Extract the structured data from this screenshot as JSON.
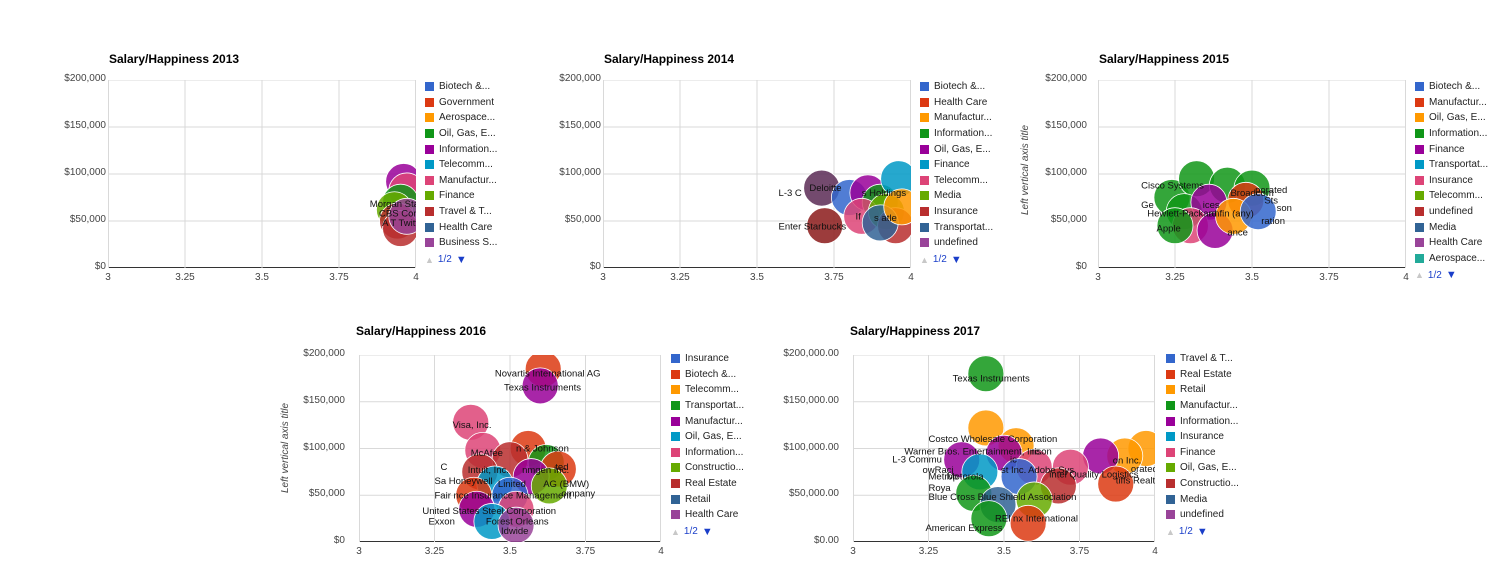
{
  "chart_data": [
    {
      "type": "scatter",
      "variant": "bubble",
      "title": "Salary/Happiness 2013",
      "xlim": [
        3,
        4
      ],
      "ylim": [
        0,
        200000
      ],
      "x_ticks": [
        "3",
        "3.25",
        "3.5",
        "3.75",
        "4"
      ],
      "y_ticks": [
        "$0",
        "$50,000",
        "$100,000",
        "$150,000",
        "$200,000"
      ],
      "ylabel": "",
      "legend": [
        {
          "label": "Biotech &...",
          "color": "#3366cc"
        },
        {
          "label": "Government",
          "color": "#dc3912"
        },
        {
          "label": "Aerospace...",
          "color": "#ff9900"
        },
        {
          "label": "Oil, Gas, E...",
          "color": "#109618"
        },
        {
          "label": "Information...",
          "color": "#990099"
        },
        {
          "label": "Telecomm...",
          "color": "#0099c6"
        },
        {
          "label": "Manufactur...",
          "color": "#dd4477"
        },
        {
          "label": "Finance",
          "color": "#66aa00"
        },
        {
          "label": "Travel & T...",
          "color": "#b82e2e"
        },
        {
          "label": "Health Care",
          "color": "#316395"
        },
        {
          "label": "Business S...",
          "color": "#994499"
        }
      ],
      "pager": "1/2",
      "points": [
        {
          "x": 3.96,
          "y": 92000,
          "color": "#990099"
        },
        {
          "x": 3.97,
          "y": 82000,
          "color": "#dd4477"
        },
        {
          "x": 3.95,
          "y": 70000,
          "color": "#109618"
        },
        {
          "x": 3.93,
          "y": 62000,
          "color": "#66aa00"
        },
        {
          "x": 3.94,
          "y": 50000,
          "color": "#b82e2e"
        },
        {
          "x": 3.95,
          "y": 42000,
          "color": "#b82e2e"
        },
        {
          "x": 3.97,
          "y": 55000,
          "color": "#994499"
        }
      ],
      "labels": [
        {
          "text": "Morgan Sta",
          "x": 3.85,
          "y": 68000
        },
        {
          "text": "CBS Corpo",
          "x": 3.88,
          "y": 58000
        },
        {
          "text": "A T Twitter",
          "x": 3.89,
          "y": 48000
        }
      ]
    },
    {
      "type": "scatter",
      "variant": "bubble",
      "title": "Salary/Happiness 2014",
      "xlim": [
        3,
        4
      ],
      "ylim": [
        0,
        200000
      ],
      "x_ticks": [
        "3",
        "3.25",
        "3.5",
        "3.75",
        "4"
      ],
      "y_ticks": [
        "$0",
        "$50,000",
        "$100,000",
        "$150,000",
        "$200,000"
      ],
      "ylabel": "",
      "legend": [
        {
          "label": "Biotech &...",
          "color": "#3366cc"
        },
        {
          "label": "Health Care",
          "color": "#dc3912"
        },
        {
          "label": "Manufactur...",
          "color": "#ff9900"
        },
        {
          "label": "Information...",
          "color": "#109618"
        },
        {
          "label": "Oil, Gas, E...",
          "color": "#990099"
        },
        {
          "label": "Finance",
          "color": "#0099c6"
        },
        {
          "label": "Telecomm...",
          "color": "#dd4477"
        },
        {
          "label": "Media",
          "color": "#66aa00"
        },
        {
          "label": "Insurance",
          "color": "#b82e2e"
        },
        {
          "label": "Transportat...",
          "color": "#316395"
        },
        {
          "label": "undefined",
          "color": "#994499"
        }
      ],
      "pager": "1/2",
      "points": [
        {
          "x": 3.71,
          "y": 85000,
          "color": "#5a2a55"
        },
        {
          "x": 3.72,
          "y": 45000,
          "color": "#8b1a1a"
        },
        {
          "x": 3.8,
          "y": 75000,
          "color": "#3366cc"
        },
        {
          "x": 3.86,
          "y": 80000,
          "color": "#990099"
        },
        {
          "x": 3.9,
          "y": 70000,
          "color": "#109618"
        },
        {
          "x": 3.84,
          "y": 55000,
          "color": "#dd4477"
        },
        {
          "x": 3.92,
          "y": 60000,
          "color": "#66aa00"
        },
        {
          "x": 3.96,
          "y": 95000,
          "color": "#0099c6"
        },
        {
          "x": 3.95,
          "y": 45000,
          "color": "#b82e2e"
        },
        {
          "x": 3.9,
          "y": 48000,
          "color": "#316395"
        },
        {
          "x": 3.97,
          "y": 65000,
          "color": "#ff9900"
        }
      ],
      "labels": [
        {
          "text": "Deloitte",
          "x": 3.67,
          "y": 85000
        },
        {
          "text": "L-3 C",
          "x": 3.57,
          "y": 80000
        },
        {
          "text": "Enter Starbucks",
          "x": 3.57,
          "y": 44000
        },
        {
          "text": "s Holdings",
          "x": 3.84,
          "y": 80000
        },
        {
          "text": "If",
          "x": 3.82,
          "y": 55000
        },
        {
          "text": "s  atle",
          "x": 3.88,
          "y": 53000
        }
      ]
    },
    {
      "type": "scatter",
      "variant": "bubble",
      "title": "Salary/Happiness 2015",
      "xlim": [
        3,
        4
      ],
      "ylim": [
        0,
        200000
      ],
      "x_ticks": [
        "3",
        "3.25",
        "3.5",
        "3.75",
        "4"
      ],
      "y_ticks": [
        "$0",
        "$50,000",
        "$100,000",
        "$150,000",
        "$200,000"
      ],
      "ylabel": "Left vertical axis title",
      "legend": [
        {
          "label": "Biotech &...",
          "color": "#3366cc"
        },
        {
          "label": "Manufactur...",
          "color": "#dc3912"
        },
        {
          "label": "Oil, Gas, E...",
          "color": "#ff9900"
        },
        {
          "label": "Information...",
          "color": "#109618"
        },
        {
          "label": "Finance",
          "color": "#990099"
        },
        {
          "label": "Transportat...",
          "color": "#0099c6"
        },
        {
          "label": "Insurance",
          "color": "#dd4477"
        },
        {
          "label": "Telecomm...",
          "color": "#66aa00"
        },
        {
          "label": "undefined",
          "color": "#b82e2e"
        },
        {
          "label": "Media",
          "color": "#316395"
        },
        {
          "label": "Health Care",
          "color": "#994499"
        },
        {
          "label": "Aerospace...",
          "color": "#22aa99"
        }
      ],
      "pager": "1/2",
      "points": [
        {
          "x": 3.24,
          "y": 75000,
          "color": "#109618"
        },
        {
          "x": 3.32,
          "y": 95000,
          "color": "#109618"
        },
        {
          "x": 3.28,
          "y": 60000,
          "color": "#109618"
        },
        {
          "x": 3.42,
          "y": 88000,
          "color": "#109618"
        },
        {
          "x": 3.5,
          "y": 85000,
          "color": "#109618"
        },
        {
          "x": 3.36,
          "y": 70000,
          "color": "#990099"
        },
        {
          "x": 3.48,
          "y": 72000,
          "color": "#dc3912"
        },
        {
          "x": 3.3,
          "y": 45000,
          "color": "#dd4477"
        },
        {
          "x": 3.38,
          "y": 40000,
          "color": "#990099"
        },
        {
          "x": 3.44,
          "y": 55000,
          "color": "#ff9900"
        },
        {
          "x": 3.52,
          "y": 60000,
          "color": "#3366cc"
        },
        {
          "x": 3.25,
          "y": 45000,
          "color": "#109618"
        }
      ],
      "labels": [
        {
          "text": "Cisco Systems",
          "x": 3.14,
          "y": 88000
        },
        {
          "text": "Broadcom",
          "x": 3.43,
          "y": 80000
        },
        {
          "text": "porated",
          "x": 3.51,
          "y": 83000
        },
        {
          "text": "Ge",
          "x": 3.14,
          "y": 67000
        },
        {
          "text": "ices",
          "x": 3.34,
          "y": 67000
        },
        {
          "text": "Sts",
          "x": 3.54,
          "y": 72000
        },
        {
          "text": "Hewlett-Packard",
          "x": 3.16,
          "y": 58000
        },
        {
          "text": "anfin (any)",
          "x": 3.36,
          "y": 58000
        },
        {
          "text": "son",
          "x": 3.58,
          "y": 64000
        },
        {
          "text": "ration",
          "x": 3.53,
          "y": 50000
        },
        {
          "text": "Apple",
          "x": 3.19,
          "y": 42000
        },
        {
          "text": "ance",
          "x": 3.42,
          "y": 38000
        }
      ]
    },
    {
      "type": "scatter",
      "variant": "bubble",
      "title": "Salary/Happiness 2016",
      "xlim": [
        3,
        4
      ],
      "ylim": [
        0,
        200000
      ],
      "x_ticks": [
        "3",
        "3.25",
        "3.5",
        "3.75",
        "4"
      ],
      "y_ticks": [
        "$0",
        "$50,000",
        "$100,000",
        "$150,000",
        "$200,000"
      ],
      "ylabel": "Left vertical axis title",
      "legend": [
        {
          "label": "Insurance",
          "color": "#3366cc"
        },
        {
          "label": "Biotech &...",
          "color": "#dc3912"
        },
        {
          "label": "Telecomm...",
          "color": "#ff9900"
        },
        {
          "label": "Transportat...",
          "color": "#109618"
        },
        {
          "label": "Manufactur...",
          "color": "#990099"
        },
        {
          "label": "Oil, Gas, E...",
          "color": "#0099c6"
        },
        {
          "label": "Information...",
          "color": "#dd4477"
        },
        {
          "label": "Constructio...",
          "color": "#66aa00"
        },
        {
          "label": "Real Estate",
          "color": "#b82e2e"
        },
        {
          "label": "Retail",
          "color": "#316395"
        },
        {
          "label": "Health Care",
          "color": "#994499"
        }
      ],
      "pager": "1/2",
      "points": [
        {
          "x": 3.61,
          "y": 185000,
          "color": "#dc3912"
        },
        {
          "x": 3.6,
          "y": 167000,
          "color": "#990099"
        },
        {
          "x": 3.37,
          "y": 128000,
          "color": "#dd4477"
        },
        {
          "x": 3.41,
          "y": 98000,
          "color": "#dd4477"
        },
        {
          "x": 3.56,
          "y": 100000,
          "color": "#dc3912"
        },
        {
          "x": 3.5,
          "y": 88000,
          "color": "#b82e2e"
        },
        {
          "x": 3.62,
          "y": 85000,
          "color": "#109618"
        },
        {
          "x": 3.66,
          "y": 78000,
          "color": "#dc3912"
        },
        {
          "x": 3.4,
          "y": 75000,
          "color": "#b82e2e"
        },
        {
          "x": 3.57,
          "y": 70000,
          "color": "#990099"
        },
        {
          "x": 3.45,
          "y": 62000,
          "color": "#0099c6"
        },
        {
          "x": 3.63,
          "y": 60000,
          "color": "#66aa00"
        },
        {
          "x": 3.38,
          "y": 50000,
          "color": "#dc3912"
        },
        {
          "x": 3.5,
          "y": 50000,
          "color": "#3366cc"
        },
        {
          "x": 3.39,
          "y": 35000,
          "color": "#990099"
        },
        {
          "x": 3.52,
          "y": 35000,
          "color": "#dd4477"
        },
        {
          "x": 3.44,
          "y": 22000,
          "color": "#0099c6"
        },
        {
          "x": 3.52,
          "y": 18000,
          "color": "#994499"
        }
      ],
      "labels": [
        {
          "text": "Novartis International AG",
          "x": 3.45,
          "y": 180000
        },
        {
          "text": "Texas Instruments",
          "x": 3.48,
          "y": 165000
        },
        {
          "text": "Visa, Inc.",
          "x": 3.31,
          "y": 125000
        },
        {
          "text": "McAfee",
          "x": 3.37,
          "y": 95000
        },
        {
          "text": "n & Johnson",
          "x": 3.52,
          "y": 100000
        },
        {
          "text": "C",
          "x": 3.27,
          "y": 80000
        },
        {
          "text": "Intuit, Inc.",
          "x": 3.36,
          "y": 77000
        },
        {
          "text": "nmgen Inc.",
          "x": 3.54,
          "y": 77000
        },
        {
          "text": "ted",
          "x": 3.65,
          "y": 80000
        },
        {
          "text": "Sa Honeywell",
          "x": 3.25,
          "y": 65000
        },
        {
          "text": "Linited",
          "x": 3.46,
          "y": 62000
        },
        {
          "text": "AG (BMW)",
          "x": 3.61,
          "y": 62000
        },
        {
          "text": "Fair nce Insurance Management",
          "x": 3.25,
          "y": 50000
        },
        {
          "text": "ompany",
          "x": 3.67,
          "y": 52000
        },
        {
          "text": "United States Steel Corporation",
          "x": 3.21,
          "y": 33000
        },
        {
          "text": "Exxon",
          "x": 3.23,
          "y": 22000
        },
        {
          "text": "Forest  Orleans",
          "x": 3.42,
          "y": 22000
        },
        {
          "text": "Idwide",
          "x": 3.47,
          "y": 12000
        }
      ]
    },
    {
      "type": "scatter",
      "variant": "bubble",
      "title": "Salary/Happiness 2017",
      "xlim": [
        3,
        4
      ],
      "ylim": [
        0,
        200000
      ],
      "x_ticks": [
        "3",
        "3.25",
        "3.5",
        "3.75",
        "4"
      ],
      "y_ticks": [
        "$0.00",
        "$50,000.00",
        "$100,000.00",
        "$150,000.00",
        "$200,000.00"
      ],
      "ylabel": "",
      "legend": [
        {
          "label": "Travel & T...",
          "color": "#3366cc"
        },
        {
          "label": "Real Estate",
          "color": "#dc3912"
        },
        {
          "label": "Retail",
          "color": "#ff9900"
        },
        {
          "label": "Manufactur...",
          "color": "#109618"
        },
        {
          "label": "Information...",
          "color": "#990099"
        },
        {
          "label": "Insurance",
          "color": "#0099c6"
        },
        {
          "label": "Finance",
          "color": "#dd4477"
        },
        {
          "label": "Oil, Gas, E...",
          "color": "#66aa00"
        },
        {
          "label": "Constructio...",
          "color": "#b82e2e"
        },
        {
          "label": "Media",
          "color": "#316395"
        },
        {
          "label": "undefined",
          "color": "#994499"
        }
      ],
      "pager": "1/2",
      "points": [
        {
          "x": 3.44,
          "y": 180000,
          "color": "#109618"
        },
        {
          "x": 3.44,
          "y": 122000,
          "color": "#ff9900"
        },
        {
          "x": 3.54,
          "y": 103000,
          "color": "#ff9900"
        },
        {
          "x": 3.97,
          "y": 100000,
          "color": "#ff9900"
        },
        {
          "x": 3.9,
          "y": 92000,
          "color": "#ff9900"
        },
        {
          "x": 3.36,
          "y": 88000,
          "color": "#990099"
        },
        {
          "x": 3.5,
          "y": 95000,
          "color": "#990099"
        },
        {
          "x": 3.82,
          "y": 92000,
          "color": "#990099"
        },
        {
          "x": 3.6,
          "y": 80000,
          "color": "#dd4477"
        },
        {
          "x": 3.72,
          "y": 80000,
          "color": "#dd4477"
        },
        {
          "x": 3.42,
          "y": 75000,
          "color": "#0099c6"
        },
        {
          "x": 3.55,
          "y": 70000,
          "color": "#3366cc"
        },
        {
          "x": 3.68,
          "y": 60000,
          "color": "#b82e2e"
        },
        {
          "x": 3.87,
          "y": 62000,
          "color": "#dc3912"
        },
        {
          "x": 3.4,
          "y": 52000,
          "color": "#109618"
        },
        {
          "x": 3.48,
          "y": 40000,
          "color": "#316395"
        },
        {
          "x": 3.6,
          "y": 45000,
          "color": "#66aa00"
        },
        {
          "x": 3.45,
          "y": 25000,
          "color": "#109618"
        },
        {
          "x": 3.58,
          "y": 20000,
          "color": "#dc3912"
        }
      ],
      "labels": [
        {
          "text": "Texas Instruments",
          "x": 3.33,
          "y": 175000
        },
        {
          "text": "Costco Wholesale Corporation",
          "x": 3.25,
          "y": 110000
        },
        {
          "text": "Warner Bros. Entertainment, Inc.",
          "x": 3.17,
          "y": 97000
        },
        {
          "text": "rison",
          "x": 3.59,
          "y": 97000
        },
        {
          "text": "L-3 Commu",
          "x": 3.13,
          "y": 88000
        },
        {
          "text": "ic",
          "x": 3.52,
          "y": 88000
        },
        {
          "text": "owRaci",
          "x": 3.23,
          "y": 77000
        },
        {
          "text": "Metrop",
          "x": 3.25,
          "y": 70000
        },
        {
          "text": "Motorola",
          "x": 3.31,
          "y": 70000
        },
        {
          "text": "st Inc.",
          "x": 3.49,
          "y": 77000
        },
        {
          "text": "Adobe Sys",
          "x": 3.58,
          "y": 77000
        },
        {
          "text": "intel Quality Logistics",
          "x": 3.65,
          "y": 72000
        },
        {
          "text": "on Inc.",
          "x": 3.86,
          "y": 87000
        },
        {
          "text": "orated",
          "x": 3.92,
          "y": 78000
        },
        {
          "text": "tiffs Realty",
          "x": 3.87,
          "y": 66000
        },
        {
          "text": "Roya",
          "x": 3.25,
          "y": 58000
        },
        {
          "text": "Blue Cross Blue Shield Association",
          "x": 3.25,
          "y": 48000
        },
        {
          "text": "REI",
          "x": 3.47,
          "y": 25000
        },
        {
          "text": "nx International",
          "x": 3.53,
          "y": 25000
        },
        {
          "text": "American Express",
          "x": 3.24,
          "y": 15000
        }
      ]
    }
  ]
}
